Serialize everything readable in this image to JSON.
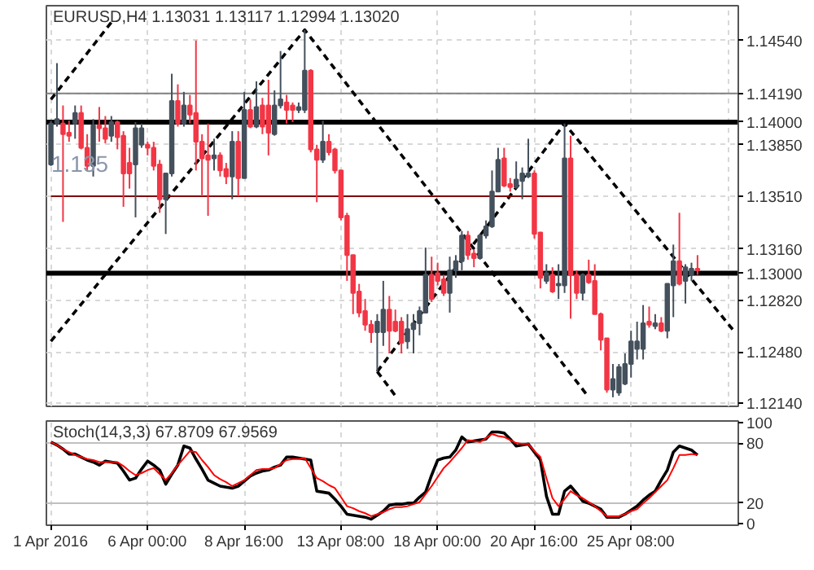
{
  "chart_data": [
    {
      "type": "candlestick",
      "title": "EURUSD,H4 1.13031 1.13117 1.12994 1.13020",
      "categories": [
        null,
        null,
        null,
        null,
        null,
        null,
        null,
        null,
        null,
        null,
        null,
        null,
        null,
        null,
        null,
        null,
        null,
        null,
        null,
        null,
        null,
        null,
        null,
        null,
        null,
        null,
        null,
        null,
        null,
        null,
        null,
        null,
        null,
        null,
        null,
        null,
        null,
        null,
        null,
        null,
        null,
        null,
        null,
        null,
        null,
        null,
        null,
        null,
        null,
        null,
        null,
        null,
        null,
        null,
        null,
        null,
        null,
        null,
        null,
        null,
        null,
        null,
        null,
        null,
        null,
        null,
        null,
        null,
        null,
        null,
        null,
        null,
        null,
        null,
        null,
        null,
        null,
        null,
        null,
        null,
        null,
        null,
        null,
        null,
        null,
        null,
        null,
        null,
        null,
        null,
        null,
        null,
        null,
        null,
        null,
        null,
        null,
        null,
        null,
        null,
        null,
        null,
        null,
        null,
        null,
        null,
        null,
        null,
        null,
        null,
        null,
        null,
        null,
        null
      ],
      "ohlc": [
        [
          1.1372,
          1.1401,
          1.1371,
          1.1399
        ],
        [
          1.1399,
          1.1439,
          1.1397,
          1.1402
        ],
        [
          1.1399,
          1.1411,
          1.1334,
          1.1392
        ],
        [
          1.1393,
          1.1401,
          1.1387,
          1.1391
        ],
        [
          1.1399,
          1.1411,
          1.1389,
          1.1406
        ],
        [
          1.1406,
          1.1411,
          1.1382,
          1.1383
        ],
        [
          1.1383,
          1.1392,
          1.1368,
          1.1371
        ],
        [
          1.1371,
          1.1402,
          1.1364,
          1.1398
        ],
        [
          1.1398,
          1.141,
          1.1387,
          1.1396
        ],
        [
          1.1396,
          1.1404,
          1.1386,
          1.1389
        ],
        [
          1.1391,
          1.1404,
          1.1387,
          1.14
        ],
        [
          1.14,
          1.1401,
          1.1382,
          1.139
        ],
        [
          1.1391,
          1.1394,
          1.1344,
          1.1366
        ],
        [
          1.1373,
          1.1383,
          1.1356,
          1.1366
        ],
        [
          1.1372,
          1.14,
          1.1337,
          1.1396
        ],
        [
          1.1385,
          1.1399,
          1.1383,
          1.1396
        ],
        [
          1.1385,
          1.1387,
          1.1378,
          1.1383
        ],
        [
          1.1383,
          1.1387,
          1.1368,
          1.1371
        ],
        [
          1.1372,
          1.1375,
          1.134,
          1.1349
        ],
        [
          1.1349,
          1.1366,
          1.1326,
          1.1366
        ],
        [
          1.1366,
          1.1432,
          1.1364,
          1.1414
        ],
        [
          1.1414,
          1.1425,
          1.1397,
          1.1399
        ],
        [
          1.1399,
          1.142,
          1.1397,
          1.1411
        ],
        [
          1.1411,
          1.1418,
          1.1399,
          1.1405
        ],
        [
          1.1406,
          1.1454,
          1.1368,
          1.1387
        ],
        [
          1.1387,
          1.1392,
          1.1351,
          1.1376
        ],
        [
          1.1378,
          1.1399,
          1.1338,
          1.1375
        ],
        [
          1.1376,
          1.1389,
          1.1368,
          1.1378
        ],
        [
          1.1378,
          1.138,
          1.1364,
          1.1368
        ],
        [
          1.1369,
          1.1373,
          1.1359,
          1.1364
        ],
        [
          1.1364,
          1.1394,
          1.1349,
          1.1387
        ],
        [
          1.1387,
          1.1394,
          1.1351,
          1.1363
        ],
        [
          1.1363,
          1.142,
          1.1363,
          1.1408
        ],
        [
          1.1408,
          1.1415,
          1.1396,
          1.1397
        ],
        [
          1.1397,
          1.1427,
          1.1396,
          1.141
        ],
        [
          1.1411,
          1.1416,
          1.1392,
          1.1397
        ],
        [
          1.1411,
          1.1428,
          1.1378,
          1.1393
        ],
        [
          1.1392,
          1.1421,
          1.1391,
          1.1411
        ],
        [
          1.1411,
          1.1447,
          1.1409,
          1.1415
        ],
        [
          1.1413,
          1.1418,
          1.1399,
          1.1408
        ],
        [
          1.1411,
          1.1413,
          1.14,
          1.1408
        ],
        [
          1.1408,
          1.1413,
          1.1406,
          1.141
        ],
        [
          1.1408,
          1.1461,
          1.1406,
          1.1434
        ],
        [
          1.1434,
          1.1435,
          1.138,
          1.1382
        ],
        [
          1.1382,
          1.1385,
          1.1347,
          1.1375
        ],
        [
          1.1375,
          1.1401,
          1.1373,
          1.1387
        ],
        [
          1.1387,
          1.1392,
          1.1378,
          1.138
        ],
        [
          1.1382,
          1.1383,
          1.1366,
          1.1368
        ],
        [
          1.1368,
          1.1368,
          1.1335,
          1.1337
        ],
        [
          1.1338,
          1.134,
          1.1295,
          1.1312
        ],
        [
          1.1312,
          1.1312,
          1.1273,
          1.1287
        ],
        [
          1.1288,
          1.1293,
          1.1271,
          1.1274
        ],
        [
          1.1275,
          1.1283,
          1.1262,
          1.1266
        ],
        [
          1.1266,
          1.1269,
          1.1254,
          1.1261
        ],
        [
          1.1261,
          1.1273,
          1.1235,
          1.1268
        ],
        [
          1.1261,
          1.1295,
          1.1252,
          1.1276
        ],
        [
          1.1276,
          1.1285,
          1.1247,
          1.1262
        ],
        [
          1.1268,
          1.1276,
          1.1261,
          1.1262
        ],
        [
          1.1268,
          1.1271,
          1.1247,
          1.1254
        ],
        [
          1.1255,
          1.1273,
          1.125,
          1.1263
        ],
        [
          1.1263,
          1.1273,
          1.1247,
          1.1267
        ],
        [
          1.1267,
          1.1278,
          1.1259,
          1.1275
        ],
        [
          1.1274,
          1.1317,
          1.1274,
          1.1299
        ],
        [
          1.1299,
          1.1311,
          1.1281,
          1.1283
        ],
        [
          1.13,
          1.1307,
          1.1292,
          1.1295
        ],
        [
          1.1296,
          1.1299,
          1.1285,
          1.1287
        ],
        [
          1.1287,
          1.1311,
          1.1274,
          1.1302
        ],
        [
          1.1302,
          1.1312,
          1.1297,
          1.1308
        ],
        [
          1.1308,
          1.1328,
          1.1302,
          1.1325
        ],
        [
          1.1325,
          1.1328,
          1.1309,
          1.1312
        ],
        [
          1.1313,
          1.1316,
          1.1304,
          1.131
        ],
        [
          1.131,
          1.1326,
          1.1309,
          1.1325
        ],
        [
          1.1325,
          1.1335,
          1.1323,
          1.1331
        ],
        [
          1.1331,
          1.1368,
          1.133,
          1.1354
        ],
        [
          1.1354,
          1.1383,
          1.1354,
          1.1375
        ],
        [
          1.1376,
          1.1383,
          1.1357,
          1.1358
        ],
        [
          1.1359,
          1.1363,
          1.1354,
          1.1357
        ],
        [
          1.1357,
          1.1374,
          1.1356,
          1.1362
        ],
        [
          1.1361,
          1.137,
          1.1349,
          1.1366
        ],
        [
          1.1364,
          1.1389,
          1.1363,
          1.1366
        ],
        [
          1.1366,
          1.1368,
          1.1323,
          1.1326
        ],
        [
          1.1327,
          1.1327,
          1.129,
          1.1297
        ],
        [
          1.1295,
          1.1306,
          1.1293,
          1.13
        ],
        [
          1.1299,
          1.1304,
          1.1287,
          1.1288
        ],
        [
          1.1292,
          1.1306,
          1.1283,
          1.1293
        ],
        [
          1.1292,
          1.1399,
          1.1287,
          1.1376
        ],
        [
          1.1376,
          1.1391,
          1.127,
          1.1299
        ],
        [
          1.1299,
          1.1302,
          1.1283,
          1.1287
        ],
        [
          1.1287,
          1.13,
          1.1282,
          1.1299
        ],
        [
          1.1299,
          1.1309,
          1.1293,
          1.1294
        ],
        [
          1.1295,
          1.1306,
          1.1273,
          1.1273
        ],
        [
          1.1273,
          1.1274,
          1.1249,
          1.1256
        ],
        [
          1.1257,
          1.1257,
          1.1221,
          1.1223
        ],
        [
          1.1223,
          1.124,
          1.1218,
          1.123
        ],
        [
          1.1221,
          1.124,
          1.1219,
          1.1238
        ],
        [
          1.1227,
          1.1247,
          1.1226,
          1.124
        ],
        [
          1.124,
          1.1262,
          1.1231,
          1.1255
        ],
        [
          1.125,
          1.1268,
          1.1243,
          1.1255
        ],
        [
          1.125,
          1.1279,
          1.1243,
          1.1267
        ],
        [
          1.1268,
          1.1278,
          1.1264,
          1.1266
        ],
        [
          1.1265,
          1.1273,
          1.1263,
          1.1267
        ],
        [
          1.1267,
          1.1271,
          1.1261,
          1.1262
        ],
        [
          1.1262,
          1.1293,
          1.1257,
          1.1293
        ],
        [
          1.1292,
          1.1319,
          1.1271,
          1.1308
        ],
        [
          1.1308,
          1.134,
          1.1292,
          1.1293
        ],
        [
          1.1295,
          1.1306,
          1.128,
          1.1304
        ],
        [
          1.1299,
          1.1307,
          1.1295,
          1.1303
        ],
        [
          1.1303,
          1.1312,
          1.1299,
          1.1302
        ],
        null,
        null,
        null,
        null,
        null,
        null
      ],
      "colors": [
        "#44505c",
        "#44505c",
        "#f23645",
        "#f23645",
        "#44505c",
        "#f23645",
        "#f23645",
        "#44505c",
        "#f23645",
        "#f23645",
        "#44505c",
        "#f23645",
        "#f23645",
        "#f23645",
        "#44505c",
        "#44505c",
        "#f23645",
        "#f23645",
        "#f23645",
        "#44505c",
        "#44505c",
        "#f23645",
        "#44505c",
        "#f23645",
        "#f23645",
        "#f23645",
        "#f23645",
        "#44505c",
        "#f23645",
        "#f23645",
        "#44505c",
        "#f23645",
        "#44505c",
        "#f23645",
        "#44505c",
        "#f23645",
        "#f23645",
        "#44505c",
        "#44505c",
        "#f23645",
        "#f23645",
        "#44505c",
        "#44505c",
        "#f23645",
        "#f23645",
        "#44505c",
        "#f23645",
        "#f23645",
        "#f23645",
        "#f23645",
        "#f23645",
        "#f23645",
        "#f23645",
        "#f23645",
        "#44505c",
        "#44505c",
        "#f23645",
        "#f23645",
        "#f23645",
        "#44505c",
        "#44505c",
        "#44505c",
        "#44505c",
        "#f23645",
        "#f23645",
        "#f23645",
        "#44505c",
        "#44505c",
        "#44505c",
        "#f23645",
        "#f23645",
        "#44505c",
        "#44505c",
        "#44505c",
        "#44505c",
        "#f23645",
        "#f23645",
        "#44505c",
        "#44505c",
        "#44505c",
        "#f23645",
        "#f23645",
        "#44505c",
        "#f23645",
        "#44505c",
        "#44505c",
        "#f23645",
        "#f23645",
        "#44505c",
        "#f23645",
        "#f23645",
        "#f23645",
        "#f23645",
        "#44505c",
        "#44505c",
        "#44505c",
        "#44505c",
        "#44505c",
        "#44505c",
        "#f23645",
        "#44505c",
        "#f23645",
        "#44505c",
        "#44505c",
        "#f23645",
        "#44505c",
        "#44505c",
        "#f23645",
        null,
        null,
        null,
        null,
        null,
        null
      ],
      "series": [
        {
          "type": "line",
          "color": "#000000",
          "line_style": "dashed",
          "values": [
            1.1255,
            null,
            null,
            null,
            null,
            null,
            null,
            null,
            null,
            null,
            null,
            null,
            null,
            null,
            null,
            null,
            null,
            null,
            null,
            null,
            null,
            null,
            null,
            null,
            null,
            null,
            null,
            null,
            null,
            null,
            null,
            null,
            null,
            null,
            null,
            null,
            null,
            null,
            null,
            null,
            null,
            null,
            1.1461,
            null,
            null,
            null,
            null,
            null,
            null,
            null,
            null,
            null,
            null,
            null,
            null,
            null,
            null,
            null,
            null,
            null,
            null,
            null,
            null,
            null,
            null,
            null,
            null,
            null,
            null,
            null,
            null,
            null,
            null,
            null,
            null,
            null,
            null,
            null,
            null,
            null,
            null,
            null,
            null,
            null,
            null,
            null,
            null,
            null,
            null,
            1.1218,
            null,
            null,
            null,
            null,
            null,
            null,
            null,
            null,
            null,
            null,
            null,
            null,
            null,
            null,
            null,
            null,
            null,
            null,
            null,
            null,
            null,
            null,
            null,
            null
          ]
        },
        {
          "type": "line",
          "color": "#000000",
          "line_style": "dashed",
          "values": [
            1.1415,
            null,
            null,
            null,
            null,
            null,
            null,
            null,
            null,
            null,
            1.1466,
            null,
            null,
            null,
            null,
            null,
            null,
            null,
            null,
            null,
            null,
            null,
            null,
            null,
            null,
            null,
            null,
            null,
            null,
            null,
            null,
            null,
            null,
            null,
            null,
            null,
            null,
            null,
            null,
            null,
            null,
            null,
            null,
            null,
            null,
            null,
            null,
            null,
            null,
            null,
            null,
            null,
            null,
            null,
            null,
            null,
            null,
            null,
            null,
            null,
            null,
            null,
            null,
            null,
            null,
            null,
            null,
            null,
            null,
            null,
            null,
            null,
            null,
            null,
            null,
            null,
            null,
            null,
            null,
            null,
            null,
            null,
            null,
            null,
            null,
            null,
            null,
            null,
            null,
            null,
            null,
            null,
            null,
            null,
            null,
            null,
            null,
            null,
            null,
            null,
            null,
            null,
            null,
            null,
            null,
            null,
            null,
            null,
            null,
            null,
            null,
            null,
            null,
            null
          ]
        },
        {
          "type": "line",
          "color": "#000000",
          "line_style": "dashed",
          "values": [
            null,
            null,
            null,
            null,
            null,
            null,
            null,
            null,
            null,
            null,
            null,
            null,
            null,
            null,
            null,
            null,
            null,
            null,
            null,
            null,
            null,
            null,
            null,
            null,
            null,
            null,
            null,
            null,
            null,
            null,
            null,
            null,
            null,
            null,
            null,
            null,
            null,
            null,
            null,
            null,
            null,
            null,
            null,
            null,
            null,
            null,
            null,
            null,
            null,
            null,
            null,
            null,
            null,
            null,
            1.1235,
            null,
            null,
            null,
            null,
            null,
            null,
            null,
            null,
            null,
            null,
            null,
            null,
            null,
            null,
            null,
            null,
            null,
            null,
            null,
            null,
            null,
            null,
            null,
            null,
            null,
            null,
            null,
            null,
            null,
            null,
            1.1399,
            null,
            null,
            null,
            null,
            null,
            null,
            null,
            null,
            null,
            null,
            null,
            null,
            null,
            null,
            null,
            null,
            null,
            null,
            null,
            null,
            null,
            null,
            null,
            null,
            null,
            null,
            null,
            1.1262
          ]
        },
        {
          "type": "line",
          "color": "#000000",
          "line_style": "dashed",
          "values": [
            null,
            null,
            null,
            null,
            null,
            null,
            null,
            null,
            null,
            null,
            null,
            null,
            null,
            null,
            null,
            null,
            null,
            null,
            null,
            null,
            null,
            null,
            null,
            null,
            null,
            null,
            null,
            null,
            null,
            null,
            null,
            null,
            null,
            null,
            null,
            null,
            null,
            null,
            null,
            null,
            null,
            null,
            null,
            null,
            null,
            null,
            null,
            null,
            null,
            null,
            null,
            null,
            null,
            null,
            1.1235,
            null,
            null,
            1.1219,
            null,
            null,
            null,
            null,
            null,
            null,
            null,
            null,
            null,
            null,
            null,
            null,
            null,
            null,
            null,
            null,
            null,
            null,
            null,
            null,
            null,
            null,
            null,
            null,
            null,
            null,
            null,
            null,
            null,
            null,
            null,
            null,
            null,
            null,
            null,
            null,
            null,
            null,
            null,
            null,
            null,
            null,
            null,
            null,
            null,
            null,
            null,
            null,
            null,
            null,
            null,
            null,
            null,
            null,
            null,
            null
          ]
        },
        {
          "type": "line",
          "color": "#800000",
          "line_style": "solid",
          "values": [
            1.1351,
            null,
            null,
            null,
            null,
            null,
            null,
            null,
            null,
            null,
            null,
            null,
            null,
            null,
            null,
            null,
            null,
            null,
            null,
            null,
            null,
            null,
            null,
            null,
            null,
            null,
            null,
            null,
            null,
            null,
            null,
            null,
            null,
            null,
            null,
            null,
            null,
            null,
            null,
            null,
            null,
            null,
            null,
            null,
            null,
            null,
            null,
            null,
            null,
            null,
            null,
            null,
            null,
            null,
            null,
            null,
            null,
            null,
            null,
            null,
            null,
            null,
            null,
            null,
            null,
            null,
            null,
            null,
            null,
            null,
            null,
            null,
            null,
            null,
            null,
            null,
            null,
            null,
            null,
            null,
            null,
            null,
            null,
            null,
            null,
            1.1351,
            null,
            null,
            null,
            null,
            null,
            null,
            null,
            null,
            null,
            null,
            null,
            null,
            null,
            null,
            null,
            null,
            null,
            null,
            null,
            null,
            null,
            null,
            null,
            null,
            null,
            null,
            null,
            null
          ]
        }
      ],
      "ref_lines": [
        {
          "axis": "y",
          "value": 1.14,
          "label": "1.14000",
          "color": "#000000"
        },
        {
          "axis": "y",
          "value": 1.13,
          "label": "1.13000",
          "color": "#000000"
        },
        {
          "axis": "y",
          "value": 1.1419,
          "color": "#808080"
        }
      ],
      "annotations": [
        "1.135"
      ],
      "ylim": [
        1.1212,
        1.1477
      ],
      "yticks": [
        {
          "value": 1.1454,
          "label": "1.14540"
        },
        {
          "value": 1.1419,
          "label": "1.14190"
        },
        {
          "value": 1.1385,
          "label": "1.13850"
        },
        {
          "value": 1.1351,
          "label": "1.13510"
        },
        {
          "value": 1.1316,
          "label": "1.13160"
        },
        {
          "value": 1.1282,
          "label": "1.12820"
        },
        {
          "value": 1.1248,
          "label": "1.12480"
        },
        {
          "value": 1.1214,
          "label": "1.12140"
        }
      ],
      "grid": true,
      "tick_labels": "y"
    },
    {
      "type": "line",
      "title": "Stoch(14,3,3) 67.8709 67.9569",
      "categories": [
        "1 Apr 2016",
        null,
        null,
        null,
        null,
        null,
        null,
        null,
        null,
        null,
        null,
        null,
        null,
        null,
        null,
        null,
        "6 Apr 00:00",
        null,
        null,
        null,
        null,
        null,
        null,
        null,
        null,
        null,
        null,
        null,
        null,
        null,
        null,
        null,
        "8 Apr 16:00",
        null,
        null,
        null,
        null,
        null,
        null,
        null,
        null,
        null,
        null,
        null,
        null,
        null,
        null,
        null,
        "13 Apr 08:00",
        null,
        null,
        null,
        null,
        null,
        null,
        null,
        null,
        null,
        null,
        null,
        null,
        null,
        null,
        null,
        "18 Apr 00:00",
        null,
        null,
        null,
        null,
        null,
        null,
        null,
        null,
        null,
        null,
        null,
        null,
        null,
        null,
        null,
        "20 Apr 16:00",
        null,
        null,
        null,
        null,
        null,
        null,
        null,
        null,
        null,
        null,
        null,
        null,
        null,
        null,
        null,
        "25 Apr 08:00",
        null,
        null,
        null,
        null,
        null,
        null,
        null,
        null,
        null,
        null,
        null,
        null,
        null,
        null,
        null,
        null,
        null
      ],
      "series": [
        {
          "color": "#000000",
          "values": [
            81,
            78,
            74,
            69,
            69,
            66,
            63,
            61,
            58,
            62,
            61,
            60,
            52,
            43,
            45,
            54,
            62,
            58,
            53,
            39,
            49,
            58,
            77,
            75,
            64,
            54,
            43,
            40,
            37,
            36,
            35,
            37,
            42,
            47,
            50,
            52,
            53,
            56,
            58,
            66,
            66,
            65,
            64,
            63,
            32,
            31,
            30,
            24,
            17,
            9,
            8,
            7,
            6,
            4,
            8,
            12,
            18,
            19,
            19,
            20,
            20,
            26,
            31,
            48,
            63,
            65,
            66,
            73,
            86,
            81,
            82,
            83,
            84,
            91,
            91,
            90,
            84,
            77,
            78,
            79,
            71,
            63,
            27,
            9,
            9,
            32,
            37,
            30,
            22,
            20,
            17,
            14,
            6,
            6,
            6,
            9,
            13,
            17,
            23,
            28,
            32,
            43,
            53,
            71,
            77,
            75,
            73,
            68,
            null,
            null,
            null,
            null,
            null,
            null
          ]
        },
        {
          "color": "#ff0000",
          "values": [
            81,
            78,
            74,
            71,
            68,
            66,
            64,
            63,
            61,
            61,
            61,
            61,
            57,
            52,
            48,
            50,
            53,
            55,
            49,
            43,
            50,
            58,
            65,
            72,
            71,
            63,
            56,
            48,
            44,
            41,
            37,
            40,
            43,
            48,
            53,
            54,
            54,
            55,
            59,
            63,
            64,
            64,
            65,
            55,
            45,
            42,
            38,
            35,
            26,
            17,
            15,
            12,
            10,
            7,
            9,
            11,
            14,
            16,
            16,
            17,
            19,
            21,
            29,
            37,
            46,
            55,
            61,
            68,
            75,
            83,
            82,
            81,
            85,
            89,
            87,
            86,
            83,
            80,
            79,
            79,
            72,
            66,
            45,
            25,
            17,
            24,
            32,
            28,
            25,
            21,
            17,
            12,
            7,
            7,
            7,
            9,
            12,
            14,
            20,
            25,
            31,
            37,
            43,
            55,
            68,
            68,
            69,
            68,
            null,
            null,
            null,
            null,
            null,
            null
          ]
        }
      ],
      "ref_lines": [
        {
          "axis": "y",
          "value": 80,
          "color": "#c0c0c0"
        },
        {
          "axis": "y",
          "value": 20,
          "color": "#c0c0c0"
        }
      ],
      "ylim": [
        -2,
        102
      ],
      "yticks": [
        0,
        20,
        80,
        100
      ],
      "grid": "x"
    }
  ]
}
